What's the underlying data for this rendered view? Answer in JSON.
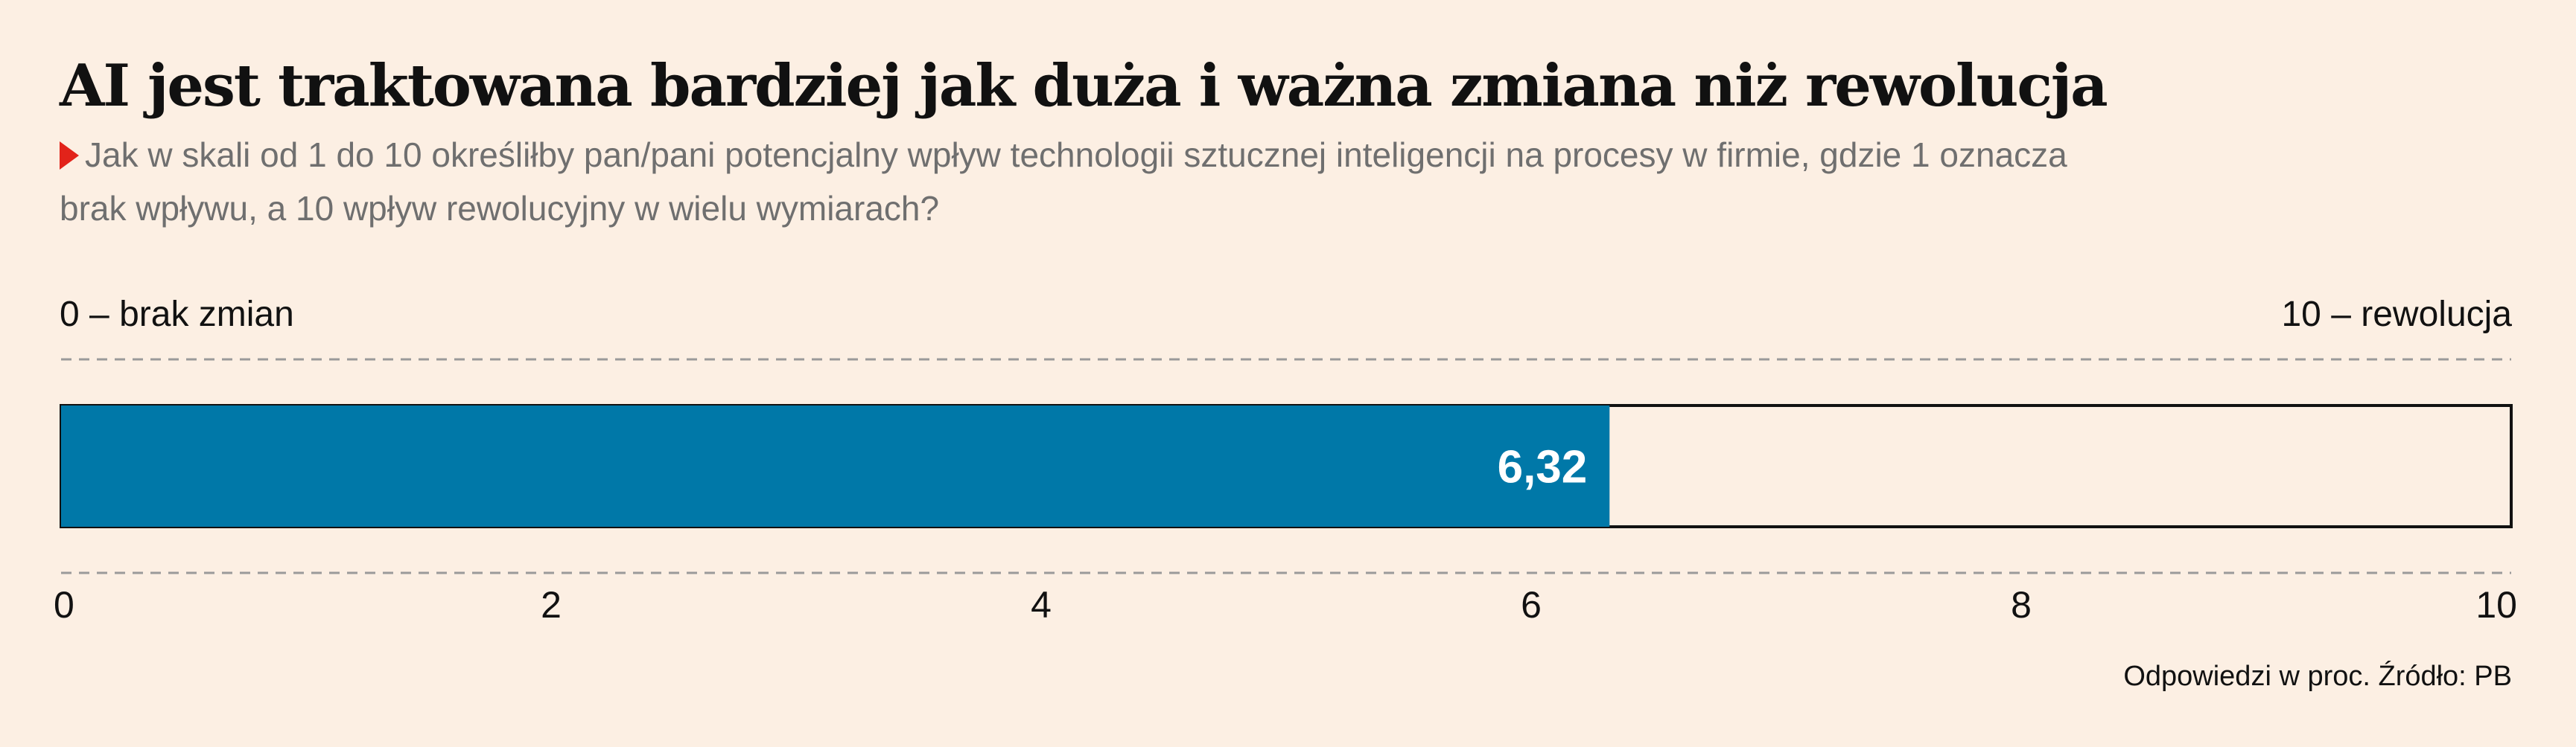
{
  "chart_data": {
    "type": "bar",
    "title": "AI jest traktowana bardziej jak duża i ważna zmiana niż rewolucja",
    "subtitle": "Jak w skali od 1 do 10 określiłby pan/pani potencjalny wpływ technologii sztucznej inteligencji na procesy w firmie, gdzie 1 oznacza brak wpływu, a 10 wpływ rewolucyjny w wielu wymiarach?",
    "scale_min_label": "0 – brak zmian",
    "scale_max_label": "10 – rewolucja",
    "value": 6.32,
    "value_label": "6,32",
    "xlim": [
      0,
      10
    ],
    "ticks": [
      0,
      2,
      4,
      6,
      8,
      10
    ],
    "tick_labels": [
      "0",
      "2",
      "4",
      "6",
      "8",
      "10"
    ],
    "orientation": "horizontal",
    "grid": false,
    "source": "Odpowiedzi w proc. Źródło: PB"
  },
  "colors": {
    "background": "#fcefe3",
    "bar_fill": "#0078a8",
    "bar_outline": "#111111",
    "marker": "#e2231a",
    "subtitle": "#6f6f6f",
    "dashed_line": "#9a9a9a"
  }
}
